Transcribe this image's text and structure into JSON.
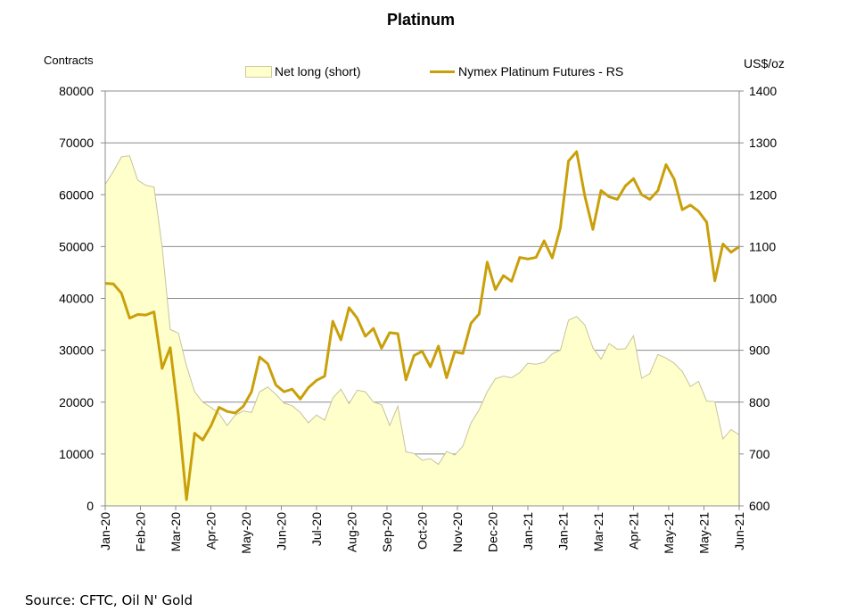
{
  "chart_data": {
    "type": "area+line",
    "title": "Platinum",
    "y_left_unit": "Contracts",
    "y_right_unit": "US$/oz",
    "source": "Source: CFTC, Oil N' Gold",
    "x_ticks": [
      "Jan-20",
      "Feb-20",
      "Mar-20",
      "Apr-20",
      "May-20",
      "Jun-20",
      "Jul-20",
      "Aug-20",
      "Sep-20",
      "Oct-20",
      "Nov-20",
      "Dec-20",
      "Jan-21",
      "Jan-21",
      "Mar-21",
      "Apr-21",
      "May-21",
      "May-21",
      "Jun-21"
    ],
    "y_left_ticks": [
      "0",
      "10000",
      "20000",
      "30000",
      "40000",
      "50000",
      "60000",
      "70000",
      "80000"
    ],
    "y_right_ticks": [
      "600",
      "700",
      "800",
      "900",
      "1000",
      "1100",
      "1200",
      "1300",
      "1400"
    ],
    "ylim_left": [
      0,
      80000
    ],
    "ylim_right": [
      600,
      1400
    ],
    "grid": "horizontal",
    "legend_position": "top",
    "series": [
      {
        "name": "Net long (short)",
        "kind": "area",
        "axis": "left",
        "color": "#ffffcc",
        "edge_color": "#c8c39a",
        "values": [
          62000,
          64500,
          67300,
          67500,
          62800,
          61800,
          61500,
          50000,
          34000,
          33300,
          27000,
          22000,
          20000,
          19000,
          17800,
          15500,
          17500,
          18300,
          18000,
          22000,
          22900,
          21500,
          19800,
          19300,
          18000,
          16000,
          17500,
          16500,
          20800,
          22500,
          19700,
          22300,
          22000,
          20000,
          19500,
          15500,
          19200,
          10400,
          10100,
          8800,
          9100,
          8000,
          10500,
          9800,
          11500,
          16000,
          18500,
          22000,
          24500,
          25000,
          24700,
          25700,
          27500,
          27300,
          27700,
          29300,
          30000,
          35800,
          36500,
          34900,
          30500,
          28300,
          31300,
          30200,
          30300,
          32800,
          24600,
          25500,
          29200,
          28500,
          27500,
          25900,
          23000,
          24000,
          20200,
          20100,
          12900,
          14700,
          13700
        ]
      },
      {
        "name": "Nymex Platinum Futures - RS",
        "kind": "line",
        "axis": "right",
        "color": "#c9a00a",
        "values": [
          1029,
          1028,
          1010,
          962,
          969,
          968,
          974,
          865,
          905,
          775,
          612,
          740,
          727,
          754,
          790,
          782,
          779,
          792,
          820,
          887,
          874,
          833,
          820,
          825,
          806,
          828,
          842,
          850,
          956,
          920,
          982,
          962,
          927,
          942,
          904,
          934,
          932,
          843,
          890,
          898,
          868,
          908,
          847,
          897,
          894,
          952,
          970,
          1070,
          1017,
          1044,
          1033,
          1079,
          1076,
          1079,
          1111,
          1078,
          1136,
          1265,
          1283,
          1198,
          1133,
          1208,
          1196,
          1191,
          1217,
          1231,
          1200,
          1191,
          1208,
          1258,
          1230,
          1171,
          1180,
          1168,
          1147,
          1034,
          1105,
          1089,
          1100
        ]
      }
    ]
  }
}
